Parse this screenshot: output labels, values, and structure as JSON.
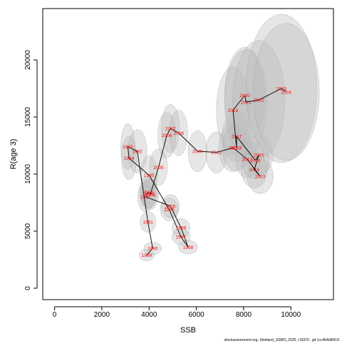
{
  "chart_data": {
    "type": "scatter",
    "title": "",
    "xlabel": "SSB",
    "ylabel": "R(age 3)",
    "xlim": [
      -500,
      11800
    ],
    "ylim": [
      -1000,
      24500
    ],
    "xticks": [
      0,
      2000,
      4000,
      6000,
      8000,
      10000
    ],
    "yticks": [
      0,
      5000,
      10000,
      15000,
      20000
    ],
    "grid": false,
    "legend": "none",
    "caption": "stockassessment.org, Shetland_SSMO_2025, r19370 , git:1cc464b8061f",
    "colors": {
      "label": "#ff0000",
      "line": "#000000",
      "ellipse_fill": "#bdbdbd",
      "ellipse_stroke": "#9a9a9a",
      "axis": "#000000"
    },
    "points": [
      {
        "year": "1989",
        "ssb": 3900,
        "r": 2900,
        "sx": 320,
        "sy": 500
      },
      {
        "year": "1990",
        "ssb": 4150,
        "r": 3500,
        "sx": 370,
        "sy": 550
      },
      {
        "year": "1991",
        "ssb": 3950,
        "r": 5800,
        "sx": 330,
        "sy": 900
      },
      {
        "year": "1992",
        "ssb": 3500,
        "r": 12000,
        "sx": 400,
        "sy": 1900
      },
      {
        "year": "1993",
        "ssb": 3100,
        "r": 12400,
        "sx": 300,
        "sy": 2000
      },
      {
        "year": "1994",
        "ssb": 3150,
        "r": 11400,
        "sx": 320,
        "sy": 1900
      },
      {
        "year": "1995",
        "ssb": 4000,
        "r": 9900,
        "sx": 350,
        "sy": 1700
      },
      {
        "year": "1996",
        "ssb": 4850,
        "r": 6900,
        "sx": 380,
        "sy": 1000
      },
      {
        "year": "1997",
        "ssb": 5350,
        "r": 4500,
        "sx": 380,
        "sy": 700
      },
      {
        "year": "1998",
        "ssb": 5650,
        "r": 3600,
        "sx": 400,
        "sy": 600
      },
      {
        "year": "1999",
        "ssb": 5350,
        "r": 5300,
        "sx": 380,
        "sy": 800
      },
      {
        "year": "2000",
        "ssb": 4900,
        "r": 7200,
        "sx": 380,
        "sy": 1000
      },
      {
        "year": "2001",
        "ssb": 3850,
        "r": 8000,
        "sx": 330,
        "sy": 1300
      },
      {
        "year": "2002",
        "ssb": 3950,
        "r": 8400,
        "sx": 350,
        "sy": 1400
      },
      {
        "year": "2003",
        "ssb": 4000,
        "r": 8300,
        "sx": 350,
        "sy": 1300
      },
      {
        "year": "2004",
        "ssb": 4050,
        "r": 8200,
        "sx": 350,
        "sy": 1300
      },
      {
        "year": "2005",
        "ssb": 4400,
        "r": 10600,
        "sx": 380,
        "sy": 1600
      },
      {
        "year": "2006",
        "ssb": 4750,
        "r": 13400,
        "sx": 380,
        "sy": 2000
      },
      {
        "year": "2007",
        "ssb": 4900,
        "r": 14000,
        "sx": 380,
        "sy": 2100
      },
      {
        "year": "2008",
        "ssb": 5250,
        "r": 13600,
        "sx": 380,
        "sy": 2000
      },
      {
        "year": "2009",
        "ssb": 6050,
        "r": 12000,
        "sx": 400,
        "sy": 1800
      },
      {
        "year": "2010",
        "ssb": 6850,
        "r": 11900,
        "sx": 450,
        "sy": 1800
      },
      {
        "year": "2011",
        "ssb": 7550,
        "r": 12300,
        "sx": 600,
        "sy": 2100
      },
      {
        "year": "2012",
        "ssb": 8150,
        "r": 11300,
        "sx": 500,
        "sy": 1600
      },
      {
        "year": "2013",
        "ssb": 8700,
        "r": 9800,
        "sx": 550,
        "sy": 1500
      },
      {
        "year": "2014",
        "ssb": 8450,
        "r": 10400,
        "sx": 550,
        "sy": 1600
      },
      {
        "year": "2015",
        "ssb": 8650,
        "r": 11700,
        "sx": 600,
        "sy": 1700
      },
      {
        "year": "2016",
        "ssb": 8500,
        "r": 11200,
        "sx": 580,
        "sy": 1600
      },
      {
        "year": "2017",
        "ssb": 7700,
        "r": 13300,
        "sx": 600,
        "sy": 2200
      },
      {
        "year": "2018",
        "ssb": 7700,
        "r": 12300,
        "sx": 600,
        "sy": 2000
      },
      {
        "year": "2019",
        "ssb": 7550,
        "r": 15600,
        "sx": 700,
        "sy": 3800
      },
      {
        "year": "2020",
        "ssb": 8050,
        "r": 16900,
        "sx": 850,
        "sy": 4200
      },
      {
        "year": "2021",
        "ssb": 8100,
        "r": 16300,
        "sx": 900,
        "sy": 4600
      },
      {
        "year": "2022",
        "ssb": 8650,
        "r": 16500,
        "sx": 1100,
        "sy": 5200
      },
      {
        "year": "2023",
        "ssb": 9600,
        "r": 17500,
        "sx": 1500,
        "sy": 6500
      },
      {
        "year": "2024",
        "ssb": 9800,
        "r": 17200,
        "sx": 1400,
        "sy": 6000
      }
    ]
  }
}
